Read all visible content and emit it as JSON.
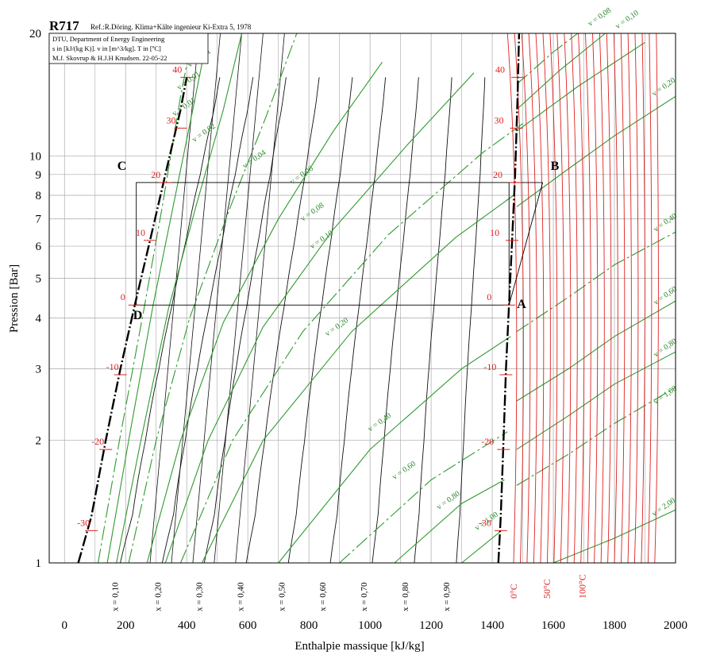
{
  "chart_data": {
    "type": "line",
    "title": "R717",
    "reference": "Ref.:R.Döring. Klima+Kälte ingenieur Ki-Extra 5, 1978",
    "info_box": [
      "DTU, Department of Energy Engineering",
      "s in [kJ/(kg K)]. v in [m^3/kg]. T in [ºC]",
      "M.J. Skovrup & H.J.H Knudsen. 22-05-22"
    ],
    "xlabel": "Enthalpie massique [kJ/kg]",
    "ylabel": "Pression [Bar]",
    "xlim": [
      -50,
      2000
    ],
    "ylim": [
      1,
      20
    ],
    "y_scale": "log",
    "grid": true,
    "x_ticks": [
      0,
      200,
      400,
      600,
      800,
      1000,
      1200,
      1400,
      1600,
      1800,
      2000
    ],
    "y_ticks": [
      1,
      2,
      3,
      4,
      5,
      6,
      7,
      8,
      9,
      10,
      20
    ],
    "y_tick_labels": [
      "1",
      "2",
      "3",
      "4",
      "5",
      "6",
      "7",
      "8",
      "9",
      "10",
      "20"
    ],
    "saturated_liquid": {
      "h": [
        45,
        88,
        135,
        183,
        230,
        280,
        330,
        380,
        400
      ],
      "p": [
        1.0,
        1.3,
        2.0,
        3.0,
        4.3,
        6.2,
        9.0,
        13.0,
        15.6
      ]
    },
    "saturated_vapor": {
      "h": [
        1420,
        1428,
        1437,
        1445,
        1455,
        1465,
        1475,
        1483,
        1488
      ],
      "p": [
        1.0,
        1.3,
        2.0,
        3.0,
        4.3,
        6.2,
        9.0,
        14.0,
        20.0
      ]
    },
    "saturation_temperatures": [
      {
        "label": "-30",
        "p": 1.2,
        "h_liq": 88,
        "h_vap": 1428
      },
      {
        "label": "-20",
        "p": 1.9,
        "h_liq": 135,
        "h_vap": 1437
      },
      {
        "label": "-10",
        "p": 2.9,
        "h_liq": 183,
        "h_vap": 1445
      },
      {
        "label": "0",
        "p": 4.3,
        "h_liq": 230,
        "h_vap": 1455
      },
      {
        "label": "10",
        "p": 6.2,
        "h_liq": 280,
        "h_vap": 1465
      },
      {
        "label": "20",
        "p": 8.6,
        "h_liq": 330,
        "h_vap": 1475
      },
      {
        "label": "30",
        "p": 11.7,
        "h_liq": 380,
        "h_vap": 1479
      },
      {
        "label": "40",
        "p": 15.6,
        "h_liq": 400,
        "h_vap": 1483
      }
    ],
    "quality_labels": [
      "x = 0,10",
      "x = 0,20",
      "x = 0,30",
      "x = 0,40",
      "x = 0,50",
      "x = 0,60",
      "x = 0,70",
      "x = 0,80",
      "x = 0,90"
    ],
    "quality_label_h": [
      180,
      320,
      455,
      590,
      725,
      860,
      995,
      1130,
      1265
    ],
    "specific_volume_labels": [
      {
        "label": "v = 0,01",
        "h": 410,
        "p": 16.5
      },
      {
        "label": "v = 0,01",
        "h": 375,
        "p": 14.5
      },
      {
        "label": "v = 0,01",
        "h": 360,
        "p": 12.5
      },
      {
        "label": "v = 0,02",
        "h": 425,
        "p": 10.8
      },
      {
        "label": "v = 0,04",
        "h": 590,
        "p": 9.3
      },
      {
        "label": "v = 0,06",
        "h": 745,
        "p": 8.5
      },
      {
        "label": "v = 0,08",
        "h": 780,
        "p": 6.9
      },
      {
        "label": "v = 0,10",
        "h": 810,
        "p": 5.9
      },
      {
        "label": "v = 0,20",
        "h": 860,
        "p": 3.6
      },
      {
        "label": "v = 0,40",
        "h": 1000,
        "p": 2.1
      },
      {
        "label": "v = 0,60",
        "h": 1080,
        "p": 1.6
      },
      {
        "label": "v = 0,80",
        "h": 1225,
        "p": 1.35
      },
      {
        "label": "v = 1,00",
        "h": 1350,
        "p": 1.2
      },
      {
        "label": "v = 0,08",
        "h": 1720,
        "p": 20.8
      },
      {
        "label": "v = 0,10",
        "h": 1810,
        "p": 20.5
      },
      {
        "label": "v = 0,20",
        "h": 1930,
        "p": 14.0
      },
      {
        "label": "v = 0,40",
        "h": 1935,
        "p": 6.5
      },
      {
        "label": "v = 0,60",
        "h": 1935,
        "p": 4.3
      },
      {
        "label": "v = 0,80",
        "h": 1935,
        "p": 3.2
      },
      {
        "label": "v = 1,00",
        "h": 1935,
        "p": 2.45
      },
      {
        "label": "v = 2,00",
        "h": 1930,
        "p": 1.3
      }
    ],
    "isotherm_labels": [
      "0°C",
      "50°C",
      "100°C"
    ],
    "isotherm_label_h": [
      1480,
      1590,
      1705
    ],
    "cycle_points": [
      {
        "label": "A",
        "h": 1455,
        "p": 4.3
      },
      {
        "label": "B",
        "h": 1565,
        "p": 8.6
      },
      {
        "label": "C",
        "h": 235,
        "p": 8.6
      },
      {
        "label": "D",
        "h": 235,
        "p": 4.3
      }
    ],
    "cycle_rectangle": {
      "h_left": 235,
      "h_right": 1455,
      "p_low": 4.3,
      "p_high": 8.6
    }
  }
}
